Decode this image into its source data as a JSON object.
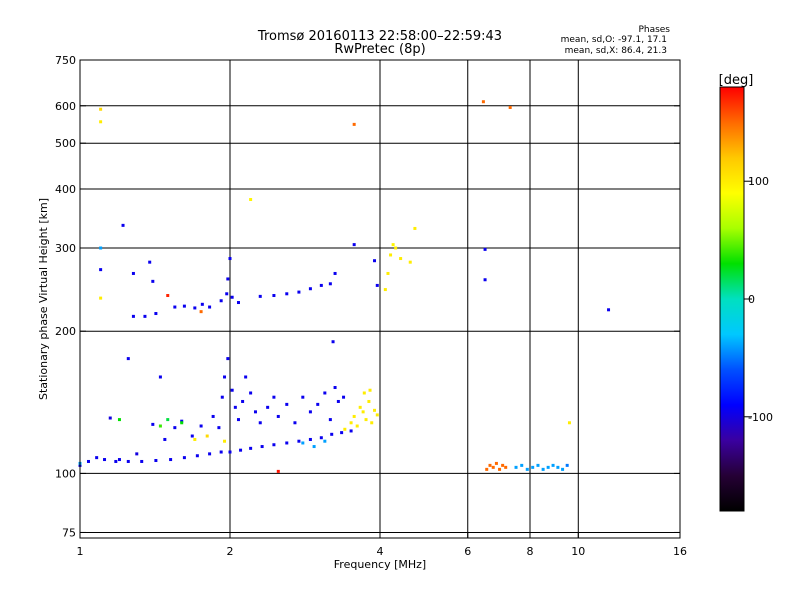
{
  "chart_data": {
    "type": "scatter",
    "title": "Tromsø 20160113 22:58:00–22:59:43",
    "subtitle": "RwPretec (8p)",
    "xlabel": "Frequency [MHz]",
    "ylabel": "Stationary phase Virtual Height [km]",
    "x_scale": "log2",
    "y_scale": "log",
    "xlim": [
      1,
      16
    ],
    "ylim": [
      73,
      750
    ],
    "x_ticks": [
      1,
      2,
      4,
      6,
      8,
      10,
      16
    ],
    "x_tick_labels": [
      "1",
      "2",
      "4",
      "6",
      "8",
      "10",
      "16"
    ],
    "y_ticks": [
      75,
      100,
      200,
      300,
      400,
      500,
      600,
      750
    ],
    "y_tick_labels": [
      "75",
      "100",
      "200",
      "300",
      "400",
      "500",
      "600",
      "750"
    ],
    "grid": true,
    "stats": {
      "heading": "Phases",
      "line_o": "mean, sd,O: -97.1, 17.1",
      "line_x": "mean, sd,X:  86.4, 21.3"
    },
    "colorbar": {
      "label": "[deg]",
      "range": [
        -180,
        180
      ],
      "ticks": [
        100,
        0,
        -100
      ],
      "tick_labels": [
        "100",
        "0",
        "-100"
      ],
      "colors": [
        "#ff0000",
        "#ff6a00",
        "#ffc800",
        "#ffff00",
        "#a8ff00",
        "#00e000",
        "#00e0c0",
        "#00c8ff",
        "#0050ff",
        "#0000ff",
        "#3a00a0",
        "#250035",
        "#000000"
      ]
    },
    "series": [
      {
        "points": [
          [
            1.0,
            104,
            -95
          ],
          [
            1.04,
            106,
            -95
          ],
          [
            1.08,
            108,
            -95
          ],
          [
            1.12,
            107,
            -95
          ],
          [
            1.18,
            106,
            -95
          ],
          [
            1.25,
            106,
            -95
          ],
          [
            1.33,
            106,
            -95
          ],
          [
            1.42,
            106.5,
            -95
          ],
          [
            1.52,
            107,
            -95
          ],
          [
            1.62,
            108,
            -95
          ],
          [
            1.72,
            109,
            -95
          ],
          [
            1.82,
            110,
            -95
          ],
          [
            1.92,
            111,
            -95
          ],
          [
            2.0,
            111,
            -95
          ],
          [
            2.1,
            112,
            -95
          ],
          [
            2.2,
            113,
            -95
          ],
          [
            2.32,
            114,
            -95
          ],
          [
            2.45,
            115,
            -95
          ],
          [
            2.6,
            116,
            -95
          ],
          [
            2.75,
            117,
            -95
          ],
          [
            2.9,
            118,
            -95
          ],
          [
            3.05,
            119,
            -95
          ],
          [
            3.2,
            121,
            -95
          ],
          [
            3.35,
            122,
            -95
          ],
          [
            3.5,
            123,
            -95
          ],
          [
            1.48,
            118,
            -95
          ],
          [
            1.55,
            125,
            -95
          ],
          [
            1.6,
            129,
            -95
          ],
          [
            1.68,
            120,
            -95
          ],
          [
            1.75,
            126,
            -95
          ],
          [
            1.85,
            132,
            -95
          ],
          [
            1.9,
            125,
            -95
          ],
          [
            1.93,
            145,
            -95
          ],
          [
            1.95,
            160,
            -95
          ],
          [
            1.98,
            175,
            -95
          ],
          [
            2.02,
            150,
            -95
          ],
          [
            2.05,
            138,
            -95
          ],
          [
            2.08,
            130,
            -95
          ],
          [
            2.12,
            142,
            -95
          ],
          [
            2.15,
            160,
            -95
          ],
          [
            2.2,
            148,
            -95
          ],
          [
            2.25,
            135,
            -95
          ],
          [
            2.3,
            128,
            -95
          ],
          [
            2.38,
            138,
            -95
          ],
          [
            2.45,
            145,
            -95
          ],
          [
            2.5,
            132,
            -95
          ],
          [
            2.6,
            140,
            -95
          ],
          [
            2.7,
            128,
            -95
          ],
          [
            2.8,
            145,
            -95
          ],
          [
            2.9,
            135,
            -95
          ],
          [
            3.0,
            140,
            -95
          ],
          [
            3.1,
            148,
            -95
          ],
          [
            3.18,
            130,
            -95
          ],
          [
            3.25,
            152,
            -95
          ],
          [
            3.3,
            142,
            -95
          ],
          [
            3.38,
            145,
            -95
          ],
          [
            1.2,
            107,
            -95
          ],
          [
            1.4,
            127,
            -95
          ],
          [
            3.22,
            190,
            -95
          ],
          [
            1.55,
            225,
            -95
          ],
          [
            1.62,
            226,
            -95
          ],
          [
            1.7,
            224,
            -95
          ],
          [
            1.76,
            228,
            -95
          ],
          [
            1.82,
            225,
            -95
          ],
          [
            1.92,
            232,
            -95
          ],
          [
            1.97,
            240,
            -95
          ],
          [
            2.02,
            236,
            -95
          ],
          [
            2.08,
            230,
            -95
          ],
          [
            2.0,
            285,
            -95
          ],
          [
            1.98,
            258,
            -95
          ],
          [
            2.3,
            237,
            -95
          ],
          [
            2.45,
            238,
            -95
          ],
          [
            2.6,
            240,
            -95
          ],
          [
            2.75,
            242,
            -95
          ],
          [
            2.9,
            246,
            -95
          ],
          [
            3.05,
            250,
            -95
          ],
          [
            3.18,
            252,
            -95
          ],
          [
            3.25,
            265,
            -95
          ],
          [
            3.55,
            305,
            -95
          ],
          [
            3.9,
            282,
            -95
          ],
          [
            3.95,
            250,
            -95
          ],
          [
            1.35,
            215,
            -95
          ],
          [
            1.42,
            218,
            -95
          ],
          [
            1.28,
            215,
            -95
          ],
          [
            1.22,
            335,
            -95
          ],
          [
            1.38,
            280,
            -95
          ],
          [
            1.4,
            255,
            -95
          ],
          [
            1.1,
            270,
            -95
          ],
          [
            1.28,
            265,
            -95
          ],
          [
            1.25,
            175,
            -95
          ],
          [
            1.45,
            160,
            -95
          ],
          [
            6.5,
            298,
            -95
          ],
          [
            6.5,
            257,
            -95
          ],
          [
            11.5,
            222,
            -95
          ],
          [
            1.15,
            131,
            -100
          ],
          [
            1.3,
            110,
            -100
          ]
        ]
      },
      {
        "points": [
          [
            3.4,
            124,
            100
          ],
          [
            3.5,
            128,
            100
          ],
          [
            3.55,
            132,
            100
          ],
          [
            3.6,
            126,
            100
          ],
          [
            3.65,
            138,
            100
          ],
          [
            3.7,
            135,
            100
          ],
          [
            3.75,
            130,
            100
          ],
          [
            3.8,
            142,
            100
          ],
          [
            3.85,
            128,
            100
          ],
          [
            3.9,
            136,
            100
          ],
          [
            3.95,
            133,
            100
          ],
          [
            3.72,
            148,
            100
          ],
          [
            3.82,
            150,
            100
          ],
          [
            4.2,
            290,
            100
          ],
          [
            4.3,
            300,
            100
          ],
          [
            4.15,
            265,
            100
          ],
          [
            4.4,
            285,
            100
          ],
          [
            4.6,
            280,
            100
          ],
          [
            4.1,
            245,
            100
          ],
          [
            4.25,
            305,
            95
          ],
          [
            4.7,
            330,
            100
          ],
          [
            2.2,
            380,
            95
          ],
          [
            1.1,
            590,
            110
          ],
          [
            1.1,
            555,
            100
          ],
          [
            1.1,
            235,
            100
          ],
          [
            1.8,
            120,
            110
          ],
          [
            1.95,
            117,
            100
          ],
          [
            1.7,
            118,
            100
          ],
          [
            9.6,
            128,
            100
          ],
          [
            3.55,
            548,
            150
          ]
        ]
      },
      {
        "points": [
          [
            6.55,
            102,
            150
          ],
          [
            6.65,
            104,
            150
          ],
          [
            6.75,
            103,
            150
          ],
          [
            6.85,
            105,
            150
          ],
          [
            6.95,
            102,
            150
          ],
          [
            7.05,
            104,
            150
          ],
          [
            7.15,
            103,
            150
          ],
          [
            6.45,
            612,
            150
          ],
          [
            7.3,
            595,
            150
          ],
          [
            2.5,
            101,
            175
          ],
          [
            1.5,
            238,
            170
          ],
          [
            1.75,
            220,
            150
          ]
        ]
      },
      {
        "points": [
          [
            7.5,
            103,
            -40
          ],
          [
            7.7,
            104,
            -40
          ],
          [
            7.9,
            102,
            -40
          ],
          [
            8.1,
            103,
            -40
          ],
          [
            8.3,
            104,
            -40
          ],
          [
            8.5,
            102,
            -40
          ],
          [
            8.7,
            103,
            -40
          ],
          [
            8.9,
            104,
            -40
          ],
          [
            9.1,
            103,
            -40
          ],
          [
            9.3,
            102,
            -40
          ],
          [
            9.5,
            104,
            -50
          ],
          [
            2.8,
            116,
            -40
          ],
          [
            2.95,
            114,
            -40
          ],
          [
            3.1,
            117,
            -40
          ],
          [
            1.0,
            105,
            -40
          ],
          [
            1.1,
            300,
            -40
          ],
          [
            1.5,
            130,
            20
          ],
          [
            1.6,
            128,
            30
          ],
          [
            1.45,
            126,
            40
          ],
          [
            1.2,
            130,
            30
          ]
        ]
      }
    ]
  }
}
